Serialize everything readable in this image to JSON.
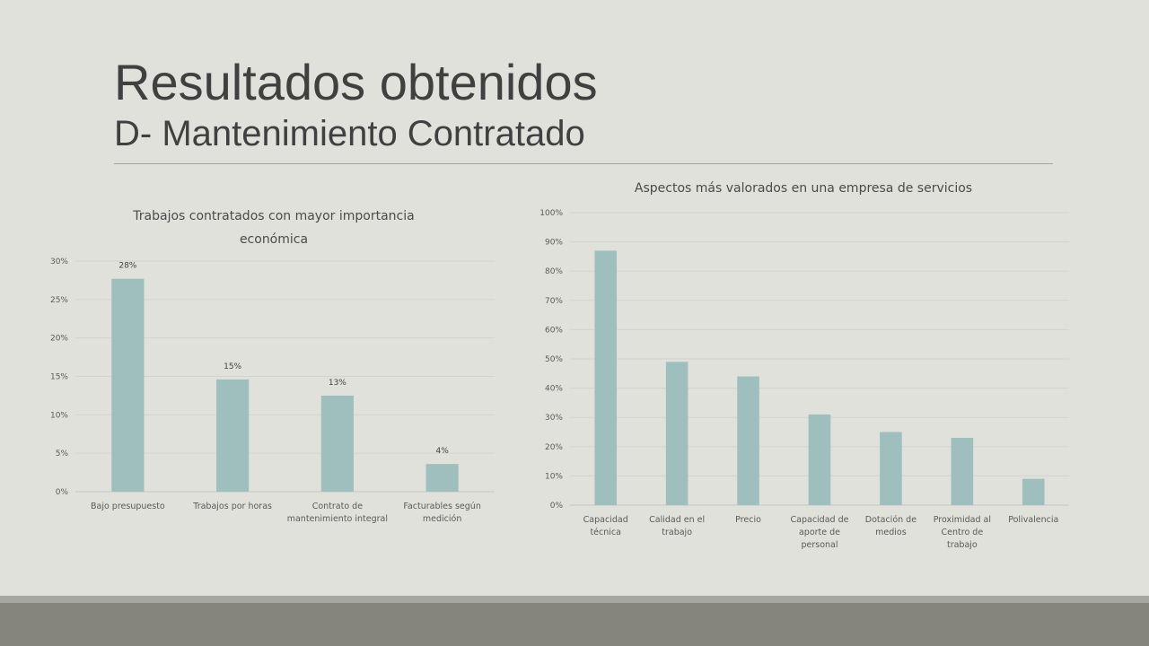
{
  "slide": {
    "title": "Resultados obtenidos",
    "subtitle": "D- Mantenimiento Contratado"
  },
  "colors": {
    "background": "#e1e1dc",
    "bar": "#9fbfbe",
    "title": "#404040",
    "footer": "#85857e",
    "footer_line": "#a7a7a2"
  },
  "chart_data": [
    {
      "type": "bar",
      "title": "Trabajos contratados con mayor importancia económica",
      "categories": [
        [
          "Bajo presupuesto"
        ],
        [
          "Trabajos por horas"
        ],
        [
          "Contrato de",
          "mantenimiento integral"
        ],
        [
          "Facturables según",
          "medición"
        ]
      ],
      "values": [
        0.28,
        0.15,
        0.13,
        0.04
      ],
      "actual_heights": [
        0.277,
        0.146,
        0.125,
        0.036
      ],
      "data_labels": [
        "28%",
        "15%",
        "13%",
        "4%"
      ],
      "yticks": [
        "0%",
        "5%",
        "10%",
        "15%",
        "20%",
        "25%",
        "30%"
      ],
      "ylim": [
        0,
        0.3
      ],
      "grid": true,
      "legend": "none",
      "xlabel": "",
      "ylabel": ""
    },
    {
      "type": "bar",
      "title": "Aspectos más valorados en una empresa de servicios",
      "categories": [
        [
          "Capacidad",
          "técnica"
        ],
        [
          "Calidad en el",
          "trabajo"
        ],
        [
          "Precio"
        ],
        [
          "Capacidad de",
          "aporte de",
          "personal"
        ],
        [
          "Dotación de",
          "medios"
        ],
        [
          "Proximidad al",
          "Centro de",
          "trabajo"
        ],
        [
          "Polivalencia"
        ]
      ],
      "values": [
        0.87,
        0.49,
        0.44,
        0.31,
        0.25,
        0.23,
        0.09
      ],
      "yticks": [
        "0%",
        "10%",
        "20%",
        "30%",
        "40%",
        "50%",
        "60%",
        "70%",
        "80%",
        "90%",
        "100%"
      ],
      "ylim": [
        0,
        1.0
      ],
      "grid": true,
      "legend": "none",
      "xlabel": "",
      "ylabel": ""
    }
  ]
}
